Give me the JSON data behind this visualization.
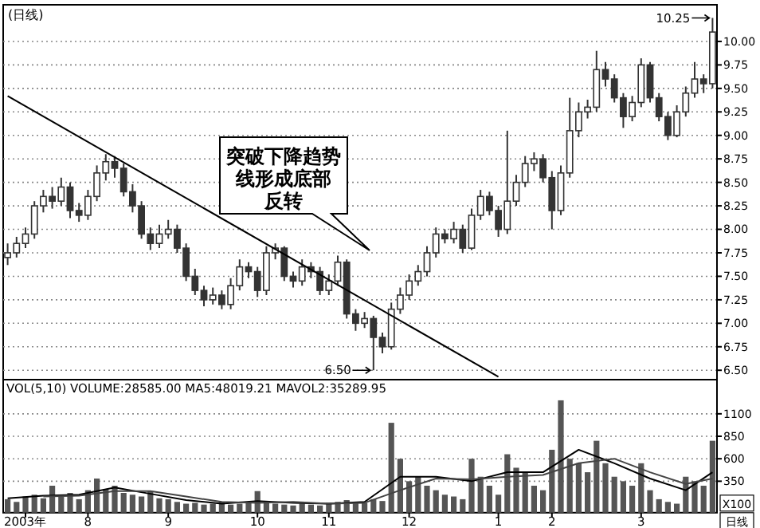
{
  "chart_data": [
    {
      "type": "candlestick",
      "title": "(日线)",
      "color": "#333333",
      "categories": [
        null,
        null,
        null,
        null,
        null,
        null,
        null,
        null,
        null,
        null,
        null,
        null,
        null,
        null,
        null,
        null,
        null,
        null,
        null,
        null,
        null,
        null,
        null,
        null,
        null,
        null,
        null,
        null,
        null,
        null,
        null,
        null,
        null,
        null,
        null,
        null,
        null,
        null,
        null,
        null,
        null,
        null,
        null,
        null,
        null,
        null,
        null,
        null,
        null,
        null,
        null,
        null,
        null,
        null,
        null,
        null,
        null,
        null,
        null,
        null,
        null,
        null,
        null,
        null,
        null,
        null,
        null,
        null,
        null,
        null,
        null,
        null,
        null,
        null,
        null,
        null,
        null,
        null,
        null,
        null
      ],
      "ohlc": [
        [
          7.7,
          7.85,
          7.62,
          7.75
        ],
        [
          7.75,
          7.92,
          7.7,
          7.85
        ],
        [
          7.85,
          8.02,
          7.8,
          7.95
        ],
        [
          7.95,
          8.3,
          7.9,
          8.25
        ],
        [
          8.25,
          8.42,
          8.18,
          8.35
        ],
        [
          8.35,
          8.45,
          8.22,
          8.3
        ],
        [
          8.3,
          8.55,
          8.25,
          8.45
        ],
        [
          8.45,
          8.5,
          8.12,
          8.2
        ],
        [
          8.2,
          8.28,
          8.08,
          8.15
        ],
        [
          8.15,
          8.42,
          8.1,
          8.35
        ],
        [
          8.35,
          8.68,
          8.3,
          8.6
        ],
        [
          8.6,
          8.8,
          8.52,
          8.72
        ],
        [
          8.72,
          8.78,
          8.55,
          8.65
        ],
        [
          8.65,
          8.7,
          8.35,
          8.4
        ],
        [
          8.4,
          8.48,
          8.18,
          8.25
        ],
        [
          8.25,
          8.3,
          7.9,
          7.95
        ],
        [
          7.95,
          8.02,
          7.78,
          7.85
        ],
        [
          7.85,
          8.05,
          7.8,
          7.95
        ],
        [
          7.95,
          8.1,
          7.9,
          8.0
        ],
        [
          8.0,
          8.05,
          7.75,
          7.8
        ],
        [
          7.8,
          7.85,
          7.45,
          7.5
        ],
        [
          7.5,
          7.58,
          7.3,
          7.35
        ],
        [
          7.35,
          7.4,
          7.18,
          7.25
        ],
        [
          7.25,
          7.38,
          7.2,
          7.3
        ],
        [
          7.3,
          7.35,
          7.15,
          7.2
        ],
        [
          7.2,
          7.48,
          7.15,
          7.4
        ],
        [
          7.4,
          7.68,
          7.35,
          7.6
        ],
        [
          7.6,
          7.65,
          7.48,
          7.55
        ],
        [
          7.55,
          7.6,
          7.28,
          7.35
        ],
        [
          7.35,
          7.82,
          7.3,
          7.75
        ],
        [
          7.75,
          7.85,
          7.68,
          7.8
        ],
        [
          7.8,
          7.82,
          7.45,
          7.5
        ],
        [
          7.5,
          7.55,
          7.38,
          7.45
        ],
        [
          7.45,
          7.68,
          7.4,
          7.6
        ],
        [
          7.6,
          7.65,
          7.48,
          7.55
        ],
        [
          7.55,
          7.6,
          7.3,
          7.35
        ],
        [
          7.35,
          7.52,
          7.3,
          7.45
        ],
        [
          7.45,
          7.72,
          7.4,
          7.65
        ],
        [
          7.65,
          7.68,
          7.05,
          7.1
        ],
        [
          7.1,
          7.15,
          6.92,
          7.0
        ],
        [
          7.0,
          7.12,
          6.95,
          7.05
        ],
        [
          7.05,
          7.08,
          6.5,
          6.85
        ],
        [
          6.85,
          6.9,
          6.68,
          6.75
        ],
        [
          6.75,
          7.22,
          6.72,
          7.15
        ],
        [
          7.15,
          7.38,
          7.1,
          7.3
        ],
        [
          7.3,
          7.52,
          7.25,
          7.45
        ],
        [
          7.45,
          7.62,
          7.4,
          7.55
        ],
        [
          7.55,
          7.82,
          7.5,
          7.75
        ],
        [
          7.75,
          8.02,
          7.7,
          7.95
        ],
        [
          7.95,
          8.0,
          7.85,
          7.9
        ],
        [
          7.9,
          8.08,
          7.85,
          8.0
        ],
        [
          8.0,
          8.05,
          7.75,
          7.8
        ],
        [
          7.8,
          8.22,
          7.78,
          8.15
        ],
        [
          8.15,
          8.42,
          8.1,
          8.35
        ],
        [
          8.35,
          8.4,
          8.15,
          8.2
        ],
        [
          8.2,
          8.25,
          7.92,
          8.0
        ],
        [
          8.0,
          9.05,
          7.95,
          8.3
        ],
        [
          8.3,
          8.58,
          8.25,
          8.5
        ],
        [
          8.5,
          8.78,
          8.45,
          8.7
        ],
        [
          8.7,
          8.82,
          8.62,
          8.75
        ],
        [
          8.75,
          8.8,
          8.5,
          8.55
        ],
        [
          8.55,
          8.62,
          8.0,
          8.2
        ],
        [
          8.2,
          8.68,
          8.15,
          8.6
        ],
        [
          8.6,
          9.4,
          8.55,
          9.05
        ],
        [
          9.05,
          9.35,
          8.98,
          9.25
        ],
        [
          9.25,
          9.38,
          9.18,
          9.3
        ],
        [
          9.3,
          9.9,
          9.25,
          9.7
        ],
        [
          9.7,
          9.78,
          9.52,
          9.6
        ],
        [
          9.6,
          9.65,
          9.35,
          9.4
        ],
        [
          9.4,
          9.45,
          9.08,
          9.2
        ],
        [
          9.2,
          9.42,
          9.15,
          9.35
        ],
        [
          9.35,
          9.82,
          9.3,
          9.75
        ],
        [
          9.75,
          9.78,
          9.35,
          9.4
        ],
        [
          9.4,
          9.45,
          9.15,
          9.2
        ],
        [
          9.2,
          9.25,
          8.95,
          9.0
        ],
        [
          9.0,
          9.32,
          8.98,
          9.25
        ],
        [
          9.25,
          9.52,
          9.2,
          9.45
        ],
        [
          9.45,
          9.78,
          9.4,
          9.6
        ],
        [
          9.6,
          9.65,
          9.45,
          9.55
        ],
        [
          9.55,
          10.25,
          9.5,
          10.1
        ]
      ],
      "series": [
        {
          "type": "line",
          "color": "#000000",
          "values": [
            9.42,
            null,
            null,
            null,
            null,
            null,
            null,
            null,
            null,
            null,
            null,
            null,
            null,
            null,
            null,
            null,
            null,
            null,
            null,
            null,
            null,
            null,
            null,
            null,
            null,
            null,
            null,
            null,
            null,
            null,
            null,
            null,
            null,
            null,
            null,
            null,
            null,
            null,
            null,
            null,
            null,
            null,
            null,
            null,
            null,
            null,
            null,
            null,
            null,
            null,
            null,
            null,
            null,
            null,
            null,
            6.43,
            null,
            null,
            null,
            null,
            null,
            null,
            null,
            null,
            null,
            null,
            null,
            null,
            null,
            null,
            null,
            null,
            null,
            null,
            null,
            null,
            null,
            null,
            null,
            null
          ]
        }
      ],
      "ylim": [
        6.4,
        10.39
      ],
      "yticks": [
        {
          "value": 6.5,
          "label": "6.50"
        },
        {
          "value": 6.75,
          "label": "6.75"
        },
        {
          "value": 7,
          "label": "7.00"
        },
        {
          "value": 7.25,
          "label": "7.25"
        },
        {
          "value": 7.5,
          "label": "7.50"
        },
        {
          "value": 7.75,
          "label": "7.75"
        },
        {
          "value": 8,
          "label": "8.00"
        },
        {
          "value": 8.25,
          "label": "8.25"
        },
        {
          "value": 8.5,
          "label": "8.50"
        },
        {
          "value": 8.75,
          "label": "8.75"
        },
        {
          "value": 9,
          "label": "9.00"
        },
        {
          "value": 9.25,
          "label": "9.25"
        },
        {
          "value": 9.5,
          "label": "9.50"
        },
        {
          "value": 9.75,
          "label": "9.75"
        },
        {
          "value": 10,
          "label": "10.00"
        }
      ],
      "grid": "y",
      "tick_labels": "y",
      "annotations": [
        "突破下降趋势线形成底部反转",
        "10.25",
        "6.50"
      ]
    },
    {
      "type": "bar",
      "subtitle": "VOL(5,10) VOLUME:28585.00 MA5:48019.21 MAVOL2:35289.95",
      "color": "#555555",
      "categories": [
        null,
        null,
        "2003年",
        null,
        null,
        null,
        null,
        null,
        null,
        "8",
        null,
        null,
        null,
        null,
        null,
        null,
        null,
        null,
        "9",
        null,
        null,
        null,
        null,
        null,
        null,
        null,
        null,
        null,
        "10",
        null,
        null,
        null,
        null,
        null,
        null,
        null,
        "11",
        null,
        null,
        null,
        null,
        null,
        null,
        null,
        null,
        "12",
        null,
        null,
        null,
        null,
        null,
        null,
        null,
        null,
        null,
        "1",
        null,
        null,
        null,
        null,
        null,
        "2",
        null,
        null,
        null,
        null,
        null,
        null,
        null,
        null,
        null,
        "3",
        null,
        null,
        null,
        null,
        null,
        null,
        null,
        null
      ],
      "values": [
        150,
        120,
        180,
        200,
        160,
        300,
        180,
        220,
        150,
        250,
        380,
        260,
        300,
        220,
        200,
        180,
        240,
        160,
        150,
        120,
        100,
        110,
        90,
        100,
        120,
        90,
        100,
        110,
        240,
        130,
        100,
        90,
        80,
        100,
        90,
        80,
        110,
        120,
        140,
        120,
        110,
        150,
        130,
        1000,
        600,
        350,
        400,
        300,
        250,
        200,
        180,
        150,
        600,
        400,
        300,
        200,
        650,
        500,
        450,
        300,
        250,
        700,
        1250,
        600,
        550,
        450,
        800,
        550,
        400,
        350,
        300,
        550,
        250,
        150,
        120,
        100,
        400,
        350,
        300,
        800
      ],
      "series": [
        {
          "type": "line",
          "color": "#000000",
          "values": [
            160,
            null,
            null,
            null,
            190,
            null,
            null,
            null,
            200,
            null,
            null,
            null,
            280,
            null,
            null,
            null,
            210,
            null,
            null,
            null,
            140,
            null,
            null,
            null,
            100,
            null,
            null,
            null,
            130,
            null,
            null,
            null,
            110,
            null,
            null,
            null,
            100,
            null,
            null,
            null,
            120,
            null,
            null,
            null,
            400,
            null,
            null,
            null,
            400,
            null,
            null,
            null,
            350,
            null,
            null,
            null,
            450,
            null,
            null,
            null,
            450,
            null,
            null,
            null,
            700,
            null,
            null,
            null,
            550,
            null,
            null,
            null,
            380,
            null,
            null,
            null,
            250,
            null,
            null,
            450
          ]
        },
        {
          "type": "line",
          "color": "#444444",
          "values": [
            null,
            null,
            null,
            null,
            180,
            null,
            null,
            null,
            190,
            null,
            null,
            null,
            240,
            null,
            null,
            null,
            240,
            null,
            null,
            null,
            180,
            null,
            null,
            null,
            120,
            null,
            null,
            null,
            110,
            null,
            null,
            null,
            120,
            null,
            null,
            null,
            100,
            null,
            null,
            null,
            110,
            null,
            null,
            null,
            250,
            null,
            null,
            null,
            380,
            null,
            null,
            null,
            370,
            null,
            null,
            null,
            400,
            null,
            null,
            null,
            420,
            null,
            null,
            null,
            550,
            null,
            null,
            null,
            600,
            null,
            null,
            null,
            450,
            null,
            null,
            null,
            320,
            null,
            null,
            380
          ]
        }
      ],
      "ylim": [
        0,
        1480
      ],
      "yticks": [
        350,
        600,
        850,
        1100
      ],
      "grid": "y",
      "annotations": [
        "X100",
        "日线"
      ]
    }
  ]
}
